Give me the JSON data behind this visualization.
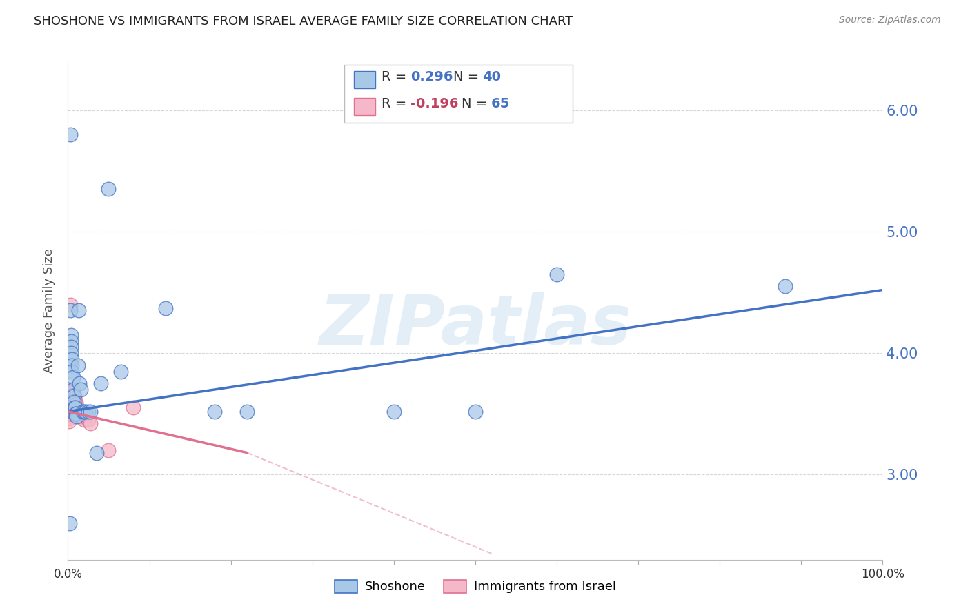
{
  "title": "SHOSHONE VS IMMIGRANTS FROM ISRAEL AVERAGE FAMILY SIZE CORRELATION CHART",
  "source": "Source: ZipAtlas.com",
  "ylabel": "Average Family Size",
  "yticks": [
    3.0,
    4.0,
    5.0,
    6.0
  ],
  "xlim": [
    0.0,
    1.0
  ],
  "ylim": [
    2.3,
    6.4
  ],
  "watermark": "ZIPatlas",
  "shoshone_color": "#a8c8e8",
  "israel_color": "#f4b8c8",
  "shoshone_line_color": "#4472c4",
  "israel_line_color": "#e07090",
  "shoshone_x": [
    0.002,
    0.003,
    0.003,
    0.004,
    0.004,
    0.004,
    0.004,
    0.005,
    0.005,
    0.005,
    0.006,
    0.006,
    0.007,
    0.007,
    0.008,
    0.008,
    0.009,
    0.01,
    0.01,
    0.011,
    0.012,
    0.013,
    0.014,
    0.016,
    0.018,
    0.02,
    0.022,
    0.025,
    0.028,
    0.035,
    0.04,
    0.05,
    0.065,
    0.12,
    0.18,
    0.22,
    0.4,
    0.5,
    0.6,
    0.88
  ],
  "shoshone_y": [
    2.6,
    5.8,
    4.35,
    4.15,
    4.1,
    4.05,
    4.0,
    3.95,
    3.9,
    3.85,
    3.8,
    3.7,
    3.65,
    3.6,
    3.55,
    3.5,
    3.55,
    3.5,
    3.5,
    3.48,
    3.9,
    4.35,
    3.75,
    3.7,
    3.52,
    3.52,
    3.52,
    3.52,
    3.52,
    3.18,
    3.75,
    5.35,
    3.85,
    4.37,
    3.52,
    3.52,
    3.52,
    3.52,
    4.65,
    4.55
  ],
  "israel_x": [
    0.001,
    0.001,
    0.001,
    0.001,
    0.001,
    0.002,
    0.002,
    0.002,
    0.002,
    0.002,
    0.002,
    0.003,
    0.003,
    0.003,
    0.003,
    0.003,
    0.003,
    0.003,
    0.003,
    0.003,
    0.003,
    0.004,
    0.004,
    0.004,
    0.004,
    0.004,
    0.004,
    0.005,
    0.005,
    0.005,
    0.005,
    0.005,
    0.005,
    0.006,
    0.006,
    0.006,
    0.006,
    0.007,
    0.007,
    0.007,
    0.007,
    0.007,
    0.008,
    0.008,
    0.008,
    0.009,
    0.009,
    0.01,
    0.01,
    0.01,
    0.011,
    0.011,
    0.012,
    0.013,
    0.014,
    0.015,
    0.016,
    0.017,
    0.018,
    0.02,
    0.022,
    0.025,
    0.028,
    0.05,
    0.08
  ],
  "israel_y": [
    3.52,
    3.5,
    3.48,
    3.46,
    3.44,
    3.65,
    3.62,
    3.6,
    3.58,
    3.55,
    3.5,
    4.4,
    3.7,
    3.68,
    3.65,
    3.62,
    3.6,
    3.57,
    3.55,
    3.52,
    3.5,
    3.68,
    3.65,
    3.62,
    3.6,
    3.57,
    3.55,
    3.65,
    3.62,
    3.6,
    3.57,
    3.55,
    3.52,
    3.65,
    3.62,
    3.58,
    3.55,
    3.65,
    3.62,
    3.58,
    3.55,
    3.52,
    3.65,
    3.6,
    3.55,
    3.6,
    3.55,
    3.6,
    3.58,
    3.55,
    3.55,
    3.5,
    3.5,
    3.48,
    3.5,
    3.5,
    3.48,
    3.5,
    3.48,
    3.45,
    3.5,
    3.45,
    3.42,
    3.2,
    3.55
  ],
  "trend_blue_x0": 0.0,
  "trend_blue_y0": 3.52,
  "trend_blue_x1": 1.0,
  "trend_blue_y1": 4.52,
  "trend_pink_x0": 0.0,
  "trend_pink_y0": 3.52,
  "trend_pink_x1": 0.22,
  "trend_pink_y1": 3.18,
  "trend_pink_dash_x0": 0.22,
  "trend_pink_dash_y0": 3.18,
  "trend_pink_dash_x1": 0.52,
  "trend_pink_dash_y1": 2.35
}
